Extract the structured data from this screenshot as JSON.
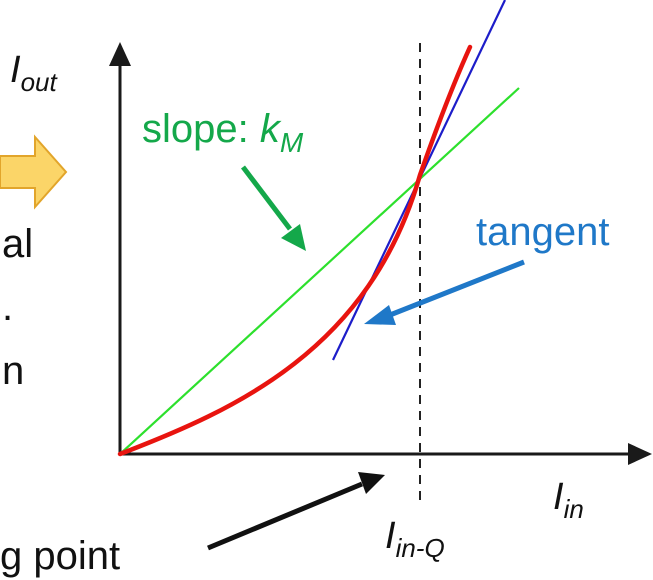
{
  "labels": {
    "y_axis": "I",
    "y_axis_sub": "out",
    "x_axis": "I",
    "x_axis_sub": "in",
    "q_point": "I",
    "q_point_sub": "in-Q",
    "slope_prefix": "slope: ",
    "slope_k": "k",
    "slope_k_sub": "M",
    "tangent": "tangent",
    "left_text_1": "al",
    "left_text_2": ".",
    "left_text_3": "n",
    "bottom_text": "g point"
  },
  "colors": {
    "axis": "#1a1a1a",
    "curve": "#e8140f",
    "secant": "#2de02d",
    "tangent": "#1d1dc9",
    "slope_label": "#14a84a",
    "tangent_label": "#1f78c8",
    "arrow_fill": "#fbd568",
    "arrow_stroke": "#e2a52b"
  }
}
